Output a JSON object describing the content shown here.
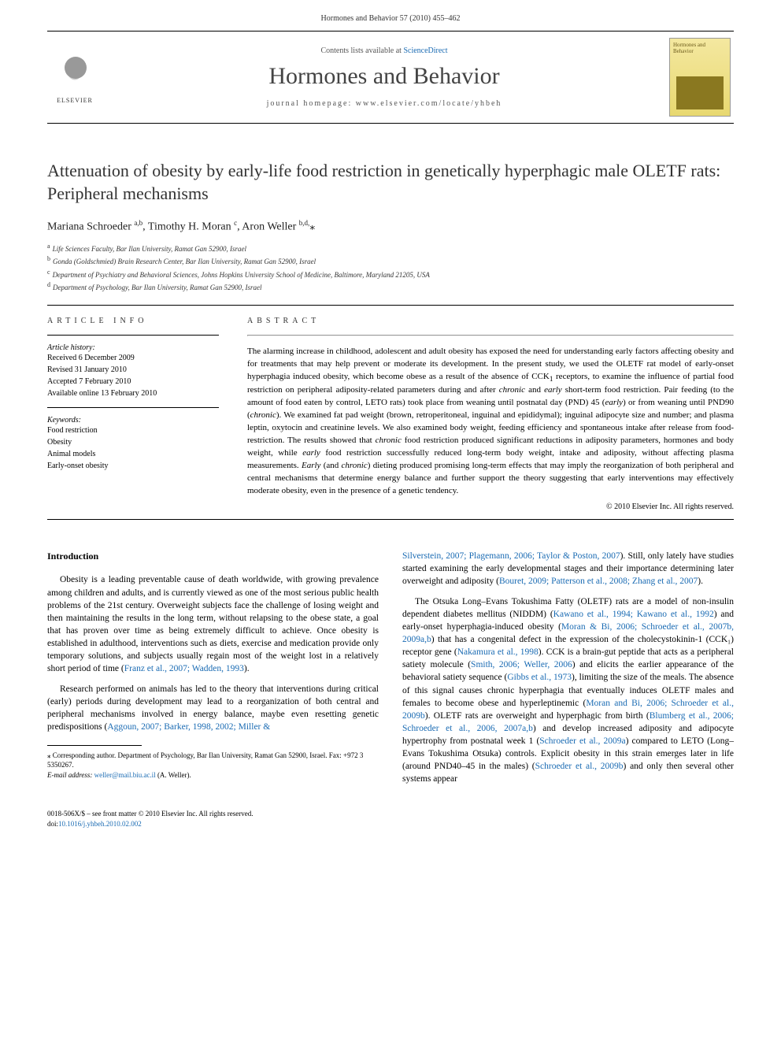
{
  "header": {
    "citation": "Hormones and Behavior 57 (2010) 455–462"
  },
  "journal_bar": {
    "elsevier_label": "ELSEVIER",
    "contents_prefix": "Contents lists available at ",
    "contents_link": "ScienceDirect",
    "journal_name": "Hormones and Behavior",
    "homepage_prefix": "journal homepage: ",
    "homepage_url": "www.elsevier.com/locate/yhbeh",
    "cover_title": "Hormones and Behavior"
  },
  "article": {
    "title": "Attenuation of obesity by early-life food restriction in genetically hyperphagic male OLETF rats: Peripheral mechanisms",
    "authors_html": "Mariana Schroeder <sup>a,b</sup>, Timothy H. Moran <sup>c</sup>, Aron Weller <sup>b,d,</sup>",
    "corr_marker": "⁎",
    "affiliations": [
      {
        "sup": "a",
        "text": "Life Sciences Faculty, Bar Ilan University, Ramat Gan 52900, Israel"
      },
      {
        "sup": "b",
        "text": "Gonda (Goldschmied) Brain Research Center, Bar Ilan University, Ramat Gan 52900, Israel"
      },
      {
        "sup": "c",
        "text": "Department of Psychiatry and Behavioral Sciences, Johns Hopkins University School of Medicine, Baltimore, Maryland 21205, USA"
      },
      {
        "sup": "d",
        "text": "Department of Psychology, Bar Ilan University, Ramat Gan 52900, Israel"
      }
    ]
  },
  "info": {
    "heading": "article info",
    "history_label": "Article history:",
    "history": [
      "Received 6 December 2009",
      "Revised 31 January 2010",
      "Accepted 7 February 2010",
      "Available online 13 February 2010"
    ],
    "keywords_label": "Keywords:",
    "keywords": [
      "Food restriction",
      "Obesity",
      "Animal models",
      "Early-onset obesity"
    ]
  },
  "abstract": {
    "heading": "abstract",
    "text": "The alarming increase in childhood, adolescent and adult obesity has exposed the need for understanding early factors affecting obesity and for treatments that may help prevent or moderate its development. In the present study, we used the OLETF rat model of early-onset hyperphagia induced obesity, which become obese as a result of the absence of CCK₁ receptors, to examine the influence of partial food restriction on peripheral adiposity-related parameters during and after chronic and early short-term food restriction. Pair feeding (to the amount of food eaten by control, LETO rats) took place from weaning until postnatal day (PND) 45 (early) or from weaning until PND90 (chronic). We examined fat pad weight (brown, retroperitoneal, inguinal and epididymal); inguinal adipocyte size and number; and plasma leptin, oxytocin and creatinine levels. We also examined body weight, feeding efficiency and spontaneous intake after release from food-restriction. The results showed that chronic food restriction produced significant reductions in adiposity parameters, hormones and body weight, while early food restriction successfully reduced long-term body weight, intake and adiposity, without affecting plasma measurements. Early (and chronic) dieting produced promising long-term effects that may imply the reorganization of both peripheral and central mechanisms that determine energy balance and further support the theory suggesting that early interventions may effectively moderate obesity, even in the presence of a genetic tendency.",
    "copyright": "© 2010 Elsevier Inc. All rights reserved."
  },
  "intro": {
    "heading": "Introduction",
    "left_paras": [
      "Obesity is a leading preventable cause of death worldwide, with growing prevalence among children and adults, and is currently viewed as one of the most serious public health problems of the 21st century. Overweight subjects face the challenge of losing weight and then maintaining the results in the long term, without relapsing to the obese state, a goal that has proven over time as being extremely difficult to achieve. Once obesity is established in adulthood, interventions such as diets, exercise and medication provide only temporary solutions, and subjects usually regain most of the weight lost in a relatively short period of time (",
      "Research performed on animals has led to the theory that interventions during critical (early) periods during development may lead to a reorganization of both central and peripheral mechanisms involved in energy balance, maybe even resetting genetic predispositions ("
    ],
    "left_cites": [
      "Franz et al., 2007; Wadden, 1993",
      "Aggoun, 2007; Barker, 1998, 2002; Miller &"
    ],
    "right_run1": "Silverstein, 2007; Plagemann, 2006; Taylor & Poston, 2007",
    "right_text1": "). Still, only lately have studies started examining the early developmental stages and their importance determining later overweight and adiposity (",
    "right_cite1b": "Bouret, 2009; Patterson et al., 2008; Zhang et al., 2007",
    "right_text1b": ").",
    "right_text2a": "The Otsuka Long–Evans Tokushima Fatty (OLETF) rats are a model of non-insulin dependent diabetes mellitus (NIDDM) (",
    "right_cite2a": "Kawano et al., 1994; Kawano et al., 1992",
    "right_text2b": ") and early-onset hyperphagia-induced obesity (",
    "right_cite2b": "Moran & Bi, 2006; Schroeder et al., 2007b, 2009a,b",
    "right_text2c": ") that has a congenital defect in the expression of the cholecystokinin-1 (CCK₁) receptor gene (",
    "right_cite2c": "Nakamura et al., 1998",
    "right_text2d": "). CCK is a brain-gut peptide that acts as a peripheral satiety molecule (",
    "right_cite2d": "Smith, 2006; Weller, 2006",
    "right_text2e": ") and elicits the earlier appearance of the behavioral satiety sequence (",
    "right_cite2e": "Gibbs et al., 1973",
    "right_text2f": "), limiting the size of the meals. The absence of this signal causes chronic hyperphagia that eventually induces OLETF males and females to become obese and hyperleptinemic (",
    "right_cite2f": "Moran and Bi, 2006; Schroeder et al., 2009b",
    "right_text2g": "). OLETF rats are overweight and hyperphagic from birth (",
    "right_cite2g": "Blumberg et al., 2006; Schroeder et al., 2006, 2007a,b",
    "right_text2h": ") and develop increased adiposity and adipocyte hypertrophy from postnatal week 1 (",
    "right_cite2h": "Schroeder et al., 2009a",
    "right_text2i": ") compared to LETO (Long–Evans Tokushima Otsuka) controls. Explicit obesity in this strain emerges later in life (around PND40–45 in the males) (",
    "right_cite2i": "Schroeder et al., 2009b",
    "right_text2j": ") and only then several other systems appear"
  },
  "footnotes": {
    "corr": "⁎ Corresponding author. Department of Psychology, Bar Ilan University, Ramat Gan 52900, Israel. Fax: +972 3 5350267.",
    "email_label": "E-mail address:",
    "email": "weller@mail.biu.ac.il",
    "email_who": " (A. Weller)."
  },
  "doi": {
    "line1": "0018-506X/$ – see front matter © 2010 Elsevier Inc. All rights reserved.",
    "line2_prefix": "doi:",
    "line2_doi": "10.1016/j.yhbeh.2010.02.002"
  },
  "colors": {
    "link": "#1a6bb3",
    "text": "#000000",
    "heading_gray": "#333333",
    "cover_bg_top": "#f4e8a0",
    "cover_bg_bot": "#e8d870"
  },
  "typography": {
    "title_fontsize": 22,
    "journal_fontsize": 30,
    "body_fontsize": 11.5,
    "abstract_fontsize": 11,
    "info_fontsize": 10,
    "footnote_fontsize": 9
  }
}
